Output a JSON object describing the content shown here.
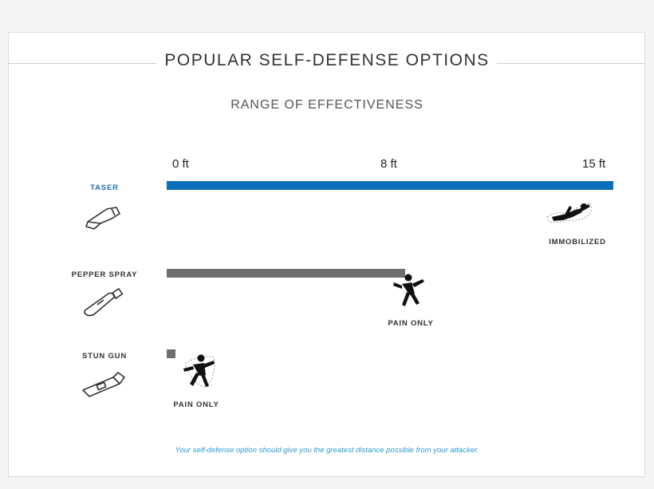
{
  "title": "POPULAR SELF-DEFENSE OPTIONS",
  "subtitle": "RANGE OF EFFECTIVENESS",
  "footnote": "Your self-defense option should give you the greatest distance possible from your attacker.",
  "colors": {
    "taser": "#0a6fb8",
    "other": "#6e6e6e",
    "taser_label": "#1f6fb5",
    "footnote": "#2b9bd1"
  },
  "icons": {
    "taser": "taser-icon",
    "pepper_spray": "pepper-spray-icon",
    "stun_gun": "stun-gun-icon",
    "immobilized": "falling-person-icon",
    "pain": "hurt-person-icon"
  },
  "chart_data": {
    "type": "bar",
    "orientation": "horizontal",
    "title": "POPULAR SELF-DEFENSE OPTIONS",
    "subtitle": "RANGE OF EFFECTIVENESS",
    "unit": "ft",
    "xlim": [
      0,
      15
    ],
    "ticks": [
      {
        "value": 0,
        "label": "0 ft"
      },
      {
        "value": 8,
        "label": "8 ft"
      },
      {
        "value": 15,
        "label": "15 ft"
      }
    ],
    "categories": [
      "TASER",
      "PEPPER SPRAY",
      "STUN GUN"
    ],
    "values": [
      15,
      8,
      0
    ],
    "outcomes": [
      "IMMOBILIZED",
      "PAIN ONLY",
      "PAIN ONLY"
    ],
    "grid": false,
    "legend": "none"
  }
}
